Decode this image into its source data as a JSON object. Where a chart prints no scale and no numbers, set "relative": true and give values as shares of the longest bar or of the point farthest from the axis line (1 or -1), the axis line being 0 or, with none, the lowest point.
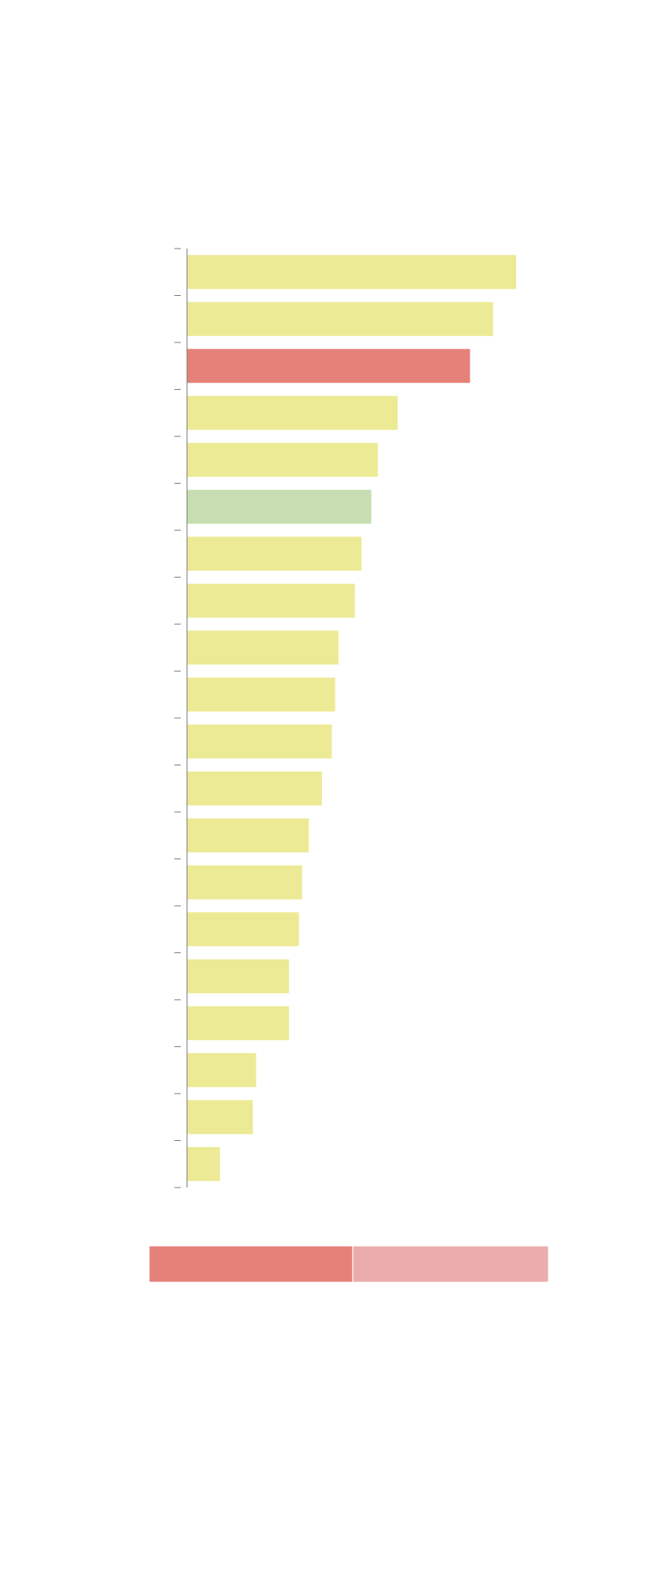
{
  "chart_data": [
    {
      "type": "bar",
      "orientation": "horizontal",
      "relative": true,
      "categories": [
        null,
        null,
        null,
        null,
        null,
        null,
        null,
        null,
        null,
        null,
        null,
        null,
        null,
        null,
        null,
        null,
        null,
        null,
        null,
        null
      ],
      "values": [
        1,
        0.93,
        0.86,
        0.64,
        0.58,
        0.56,
        0.53,
        0.51,
        0.46,
        0.45,
        0.44,
        0.41,
        0.37,
        0.35,
        0.34,
        0.31,
        0.31,
        0.21,
        0.2,
        0.1
      ],
      "colors": [
        "#ecea94",
        "#ecea94",
        "#e6817a",
        "#ecea94",
        "#ecea94",
        "#c6deb1",
        "#ecea94",
        "#ecea94",
        "#ecea94",
        "#ecea94",
        "#ecea94",
        "#ecea94",
        "#ecea94",
        "#ecea94",
        "#ecea94",
        "#ecea94",
        "#ecea94",
        "#ecea94",
        "#ecea94",
        "#ecea94"
      ]
    },
    {
      "type": "bar",
      "orientation": "horizontal",
      "relative": true,
      "stacked": true,
      "categories": [
        null
      ],
      "series": [
        {
          "color": "#e6817a",
          "values": [
            0.51
          ]
        },
        {
          "color": "#ebadab",
          "values": [
            0.49
          ]
        }
      ]
    }
  ]
}
